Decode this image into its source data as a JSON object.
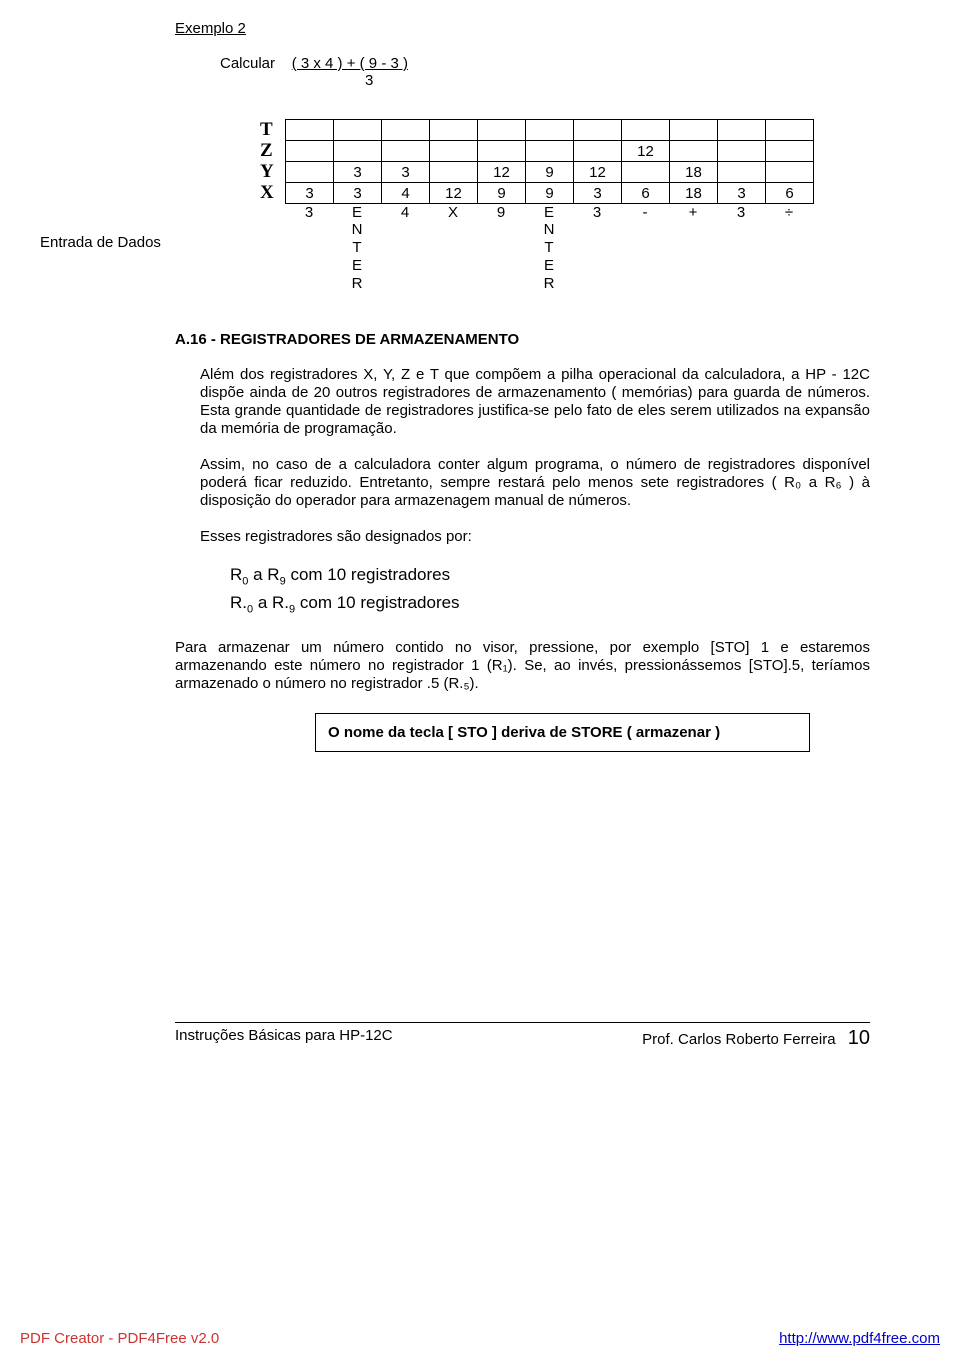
{
  "example_title": "Exemplo  2",
  "calc_label": "Calcular",
  "calc_expr": "( 3 x 4 )  +  ( 9 - 3 )",
  "calc_denom": "3",
  "stack": {
    "rows": [
      "T",
      "Z",
      "Y",
      "X"
    ],
    "cells": [
      [
        "",
        "",
        "",
        "",
        "",
        "",
        "",
        "",
        "",
        "",
        ""
      ],
      [
        "",
        "",
        "",
        "",
        "",
        "",
        "",
        "12",
        "",
        "",
        ""
      ],
      [
        "",
        "3",
        "3",
        "",
        "12",
        "9",
        "12",
        "",
        "18",
        "",
        ""
      ],
      [
        "3",
        "3",
        "4",
        "12",
        "9",
        "9",
        "3",
        "6",
        "18",
        "3",
        "6"
      ]
    ],
    "ops": [
      "3",
      "E",
      "4",
      "X",
      "9",
      "E",
      "3",
      "-",
      "+",
      "3",
      "÷"
    ],
    "enter_left_col": 1,
    "enter_right_col": 5,
    "enter_letters": [
      "N",
      "T",
      "E",
      "R"
    ]
  },
  "entrada_label": "Entrada de Dados",
  "section_heading": "A.16 - REGISTRADORES DE ARMAZENAMENTO",
  "para1": "Além dos registradores X, Y, Z e T que compõem a pilha operacional da calculadora, a HP - 12C  dispõe ainda de 20 outros registradores de armazenamento ( memórias) para guarda de números. Esta grande quantidade de registradores justifica-se pelo fato de eles serem utilizados na expansão da memória de programação.",
  "para2": "Assim, no caso de a calculadora conter algum programa, o número de registradores disponível poderá ficar reduzido. Entretanto, sempre restará pelo menos sete registradores ( R₀  a  R₆ ) à disposição do operador para armazenagem manual de números.",
  "para3": "Esses registradores são designados por:",
  "reg_line1_pre": "R",
  "reg_line1_sub1": "0",
  "reg_line1_mid": "  a  R",
  "reg_line1_sub2": "9",
  "reg_line1_post": "  com 10 registradores",
  "reg_line2_pre": "R.",
  "reg_line2_sub1": "0",
  "reg_line2_mid": " a  R.",
  "reg_line2_sub2": "9",
  "reg_line2_post": " com 10 registradores",
  "para4": "Para armazenar um número contido no visor, pressione, por exemplo [STO] 1 e estaremos armazenando este número no registrador 1 (R₁).   Se, ao invés, pressionássemos [STO].5, teríamos armazenado o número no registrador .5 (R.₅).",
  "box_note": "O nome da tecla [ STO ] deriva de STORE  ( armazenar )",
  "footer_left": "Instruções Básicas para HP-12C",
  "footer_right": "Prof. Carlos Roberto Ferreira",
  "page_number": "10",
  "pdf_left": "PDF Creator - PDF4Free v2.0",
  "pdf_right": "http://www.pdf4free.com"
}
